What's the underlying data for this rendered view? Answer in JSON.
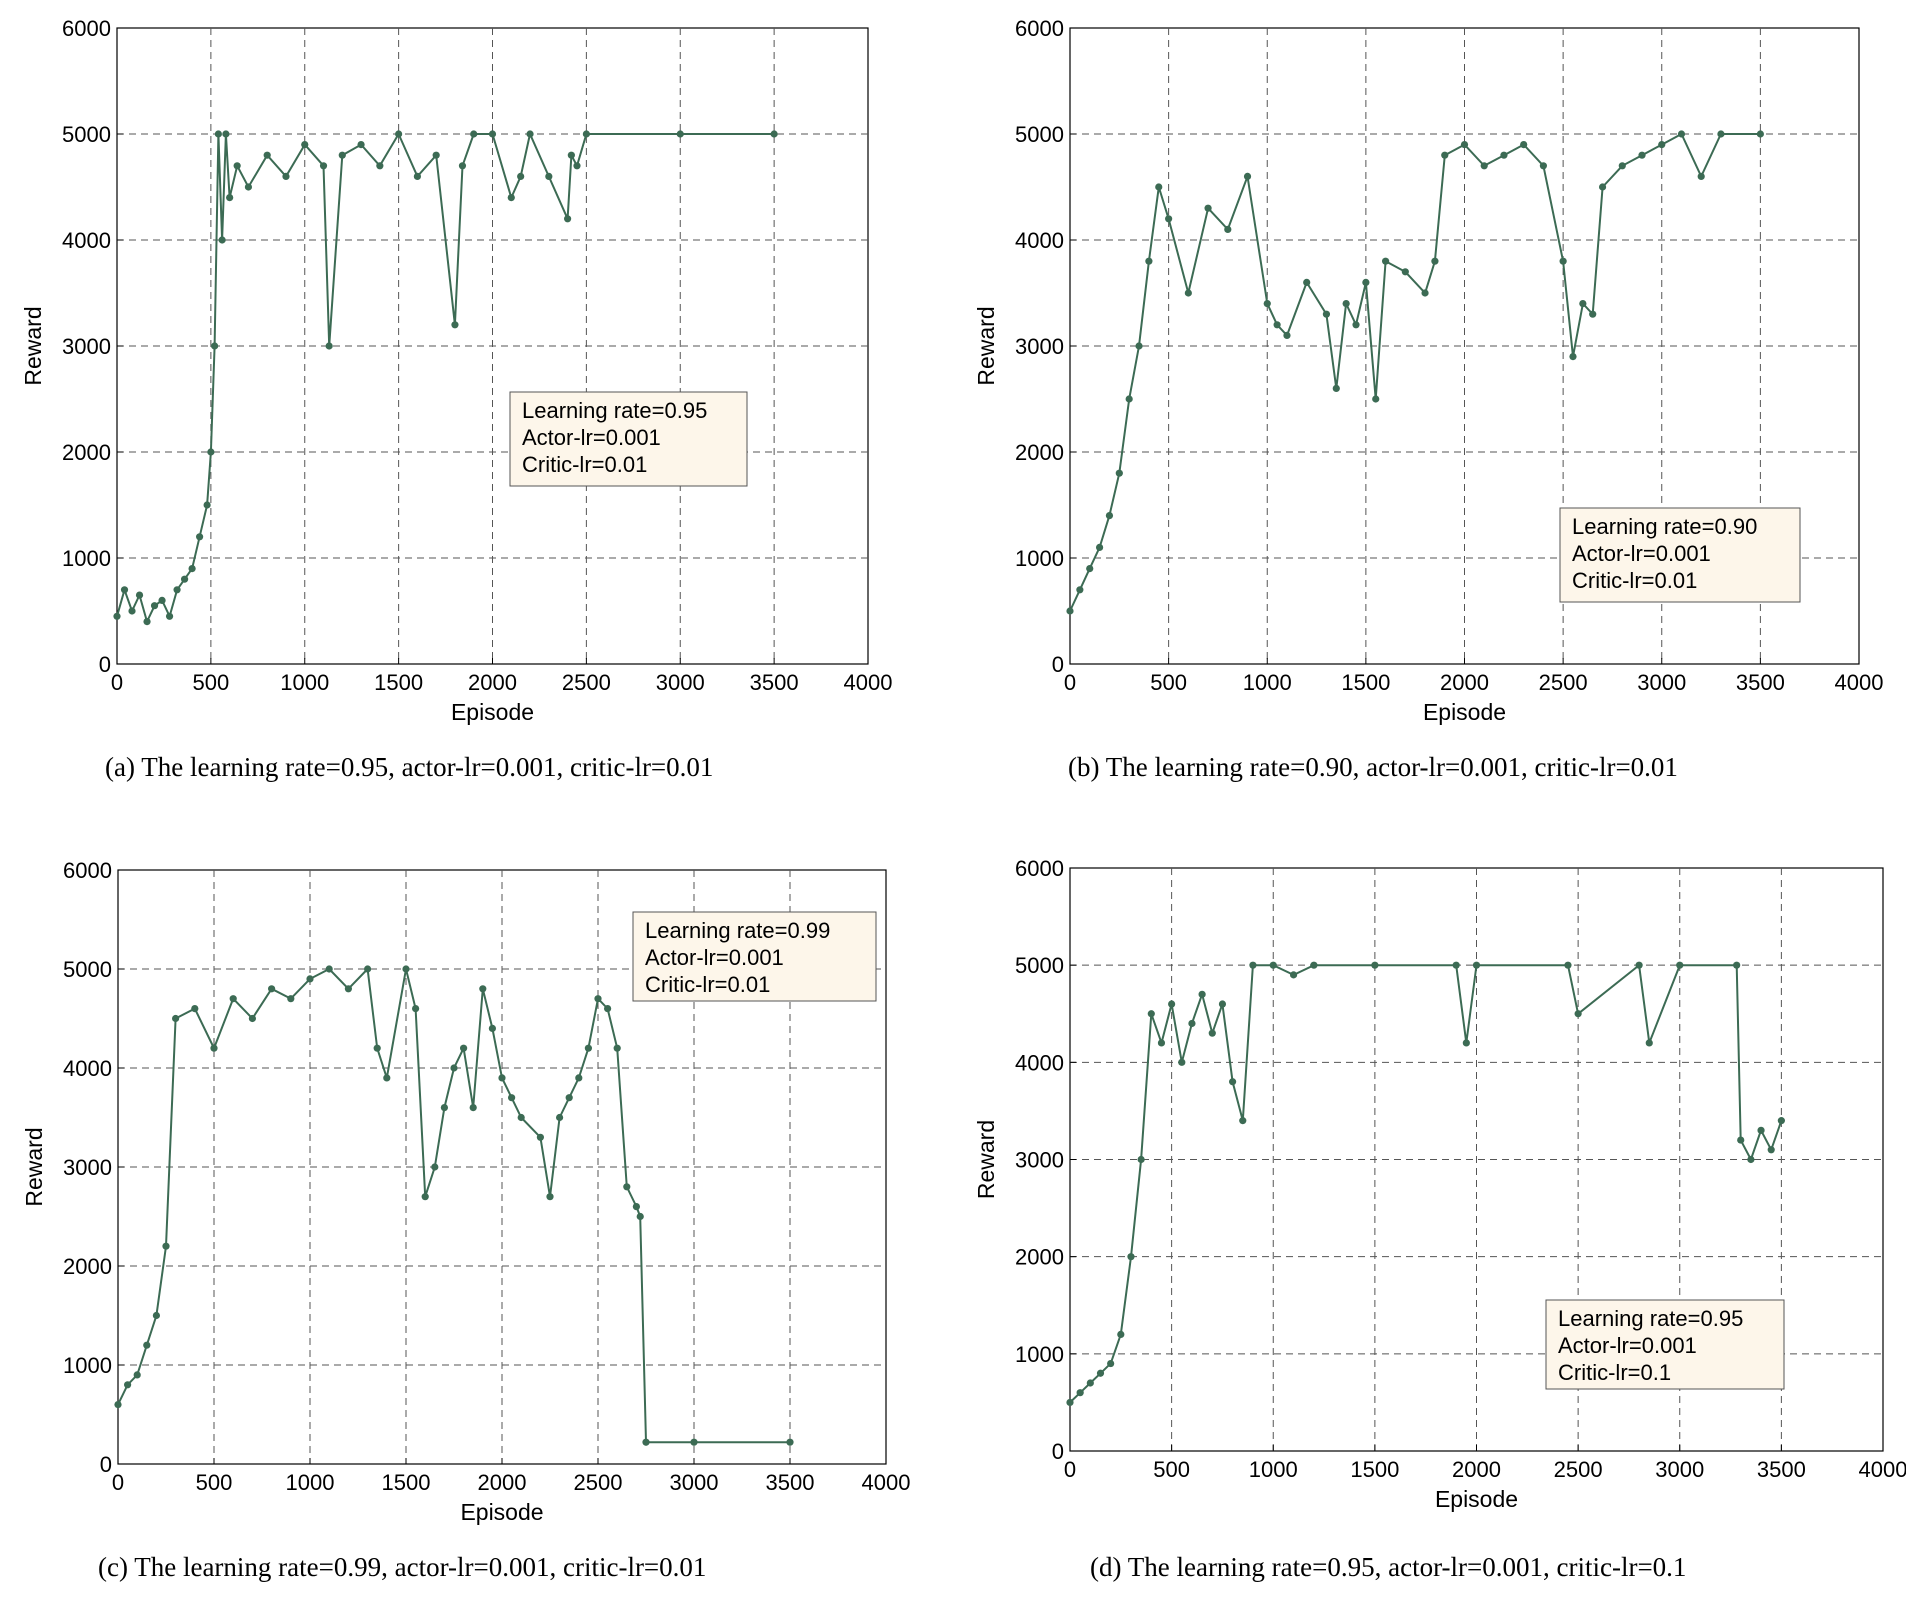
{
  "chart_data": [
    {
      "type": "line",
      "panel_id": "a",
      "caption": "(a) The learning rate=0.95, actor-lr=0.001, critic-lr=0.01",
      "xlabel": "Episode",
      "ylabel": "Reward",
      "xlim": [
        0,
        4000
      ],
      "ylim": [
        0,
        6000
      ],
      "xticks": [
        0,
        500,
        1000,
        1500,
        2000,
        2500,
        3000,
        3500,
        4000
      ],
      "yticks": [
        0,
        1000,
        2000,
        3000,
        4000,
        5000,
        6000
      ],
      "grid": true,
      "legend": {
        "position": "center-right",
        "lines": [
          "Learning rate=0.95",
          "Actor-lr=0.001",
          "Critic-lr=0.01"
        ]
      },
      "series": [
        {
          "color": "#3c6b54",
          "x": [
            0,
            40,
            80,
            120,
            160,
            200,
            240,
            280,
            320,
            360,
            400,
            440,
            480,
            500,
            520,
            540,
            560,
            580,
            600,
            640,
            700,
            800,
            900,
            1000,
            1100,
            1130,
            1200,
            1300,
            1400,
            1500,
            1600,
            1700,
            1800,
            1840,
            1900,
            2000,
            2100,
            2150,
            2200,
            2300,
            2400,
            2420,
            2450,
            2500,
            3000,
            3500
          ],
          "y": [
            450,
            700,
            500,
            650,
            400,
            550,
            600,
            450,
            700,
            800,
            900,
            1200,
            1500,
            2000,
            3000,
            5000,
            4000,
            5000,
            4400,
            4700,
            4500,
            4800,
            4600,
            4900,
            4700,
            3000,
            4800,
            4900,
            4700,
            5000,
            4600,
            4800,
            3200,
            4700,
            5000,
            5000,
            4400,
            4600,
            5000,
            4600,
            4200,
            4800,
            4700,
            5000,
            5000,
            5000
          ]
        }
      ]
    },
    {
      "type": "line",
      "panel_id": "b",
      "caption": "(b) The learning rate=0.90, actor-lr=0.001, critic-lr=0.01",
      "xlabel": "Episode",
      "ylabel": "Reward",
      "xlim": [
        0,
        4000
      ],
      "ylim": [
        0,
        6000
      ],
      "xticks": [
        0,
        500,
        1000,
        1500,
        2000,
        2500,
        3000,
        3500,
        4000
      ],
      "yticks": [
        0,
        1000,
        2000,
        3000,
        4000,
        5000,
        6000
      ],
      "grid": true,
      "legend": {
        "position": "lower-right",
        "lines": [
          "Learning rate=0.90",
          "Actor-lr=0.001",
          "Critic-lr=0.01"
        ]
      },
      "series": [
        {
          "color": "#3c6b54",
          "x": [
            0,
            50,
            100,
            150,
            200,
            250,
            300,
            350,
            400,
            450,
            500,
            600,
            700,
            800,
            900,
            1000,
            1050,
            1100,
            1200,
            1300,
            1350,
            1400,
            1450,
            1500,
            1550,
            1600,
            1700,
            1800,
            1850,
            1900,
            2000,
            2100,
            2200,
            2300,
            2400,
            2500,
            2550,
            2600,
            2650,
            2700,
            2800,
            2900,
            3000,
            3100,
            3200,
            3300,
            3500
          ],
          "y": [
            500,
            700,
            900,
            1100,
            1400,
            1800,
            2500,
            3000,
            3800,
            4500,
            4200,
            3500,
            4300,
            4100,
            4600,
            3400,
            3200,
            3100,
            3600,
            3300,
            2600,
            3400,
            3200,
            3600,
            2500,
            3800,
            3700,
            3500,
            3800,
            4800,
            4900,
            4700,
            4800,
            4900,
            4700,
            3800,
            2900,
            3400,
            3300,
            4500,
            4700,
            4800,
            4900,
            5000,
            4600,
            5000,
            5000
          ]
        }
      ]
    },
    {
      "type": "line",
      "panel_id": "c",
      "caption": "(c) The learning rate=0.99, actor-lr=0.001, critic-lr=0.01",
      "xlabel": "Episode",
      "ylabel": "Reward",
      "xlim": [
        0,
        4000
      ],
      "ylim": [
        0,
        6000
      ],
      "xticks": [
        0,
        500,
        1000,
        1500,
        2000,
        2500,
        3000,
        3500,
        4000
      ],
      "yticks": [
        0,
        1000,
        2000,
        3000,
        4000,
        5000,
        6000
      ],
      "grid": true,
      "legend": {
        "position": "top-right",
        "lines": [
          "Learning rate=0.99",
          "Actor-lr=0.001",
          "Critic-lr=0.01"
        ]
      },
      "series": [
        {
          "color": "#3c6b54",
          "x": [
            0,
            50,
            100,
            150,
            200,
            250,
            300,
            400,
            500,
            600,
            700,
            800,
            900,
            1000,
            1100,
            1200,
            1300,
            1350,
            1400,
            1500,
            1550,
            1600,
            1650,
            1700,
            1750,
            1800,
            1850,
            1900,
            1950,
            2000,
            2050,
            2100,
            2200,
            2250,
            2300,
            2350,
            2400,
            2450,
            2500,
            2550,
            2600,
            2650,
            2700,
            2720,
            2750,
            3000,
            3500
          ],
          "y": [
            600,
            800,
            900,
            1200,
            1500,
            2200,
            4500,
            4600,
            4200,
            4700,
            4500,
            4800,
            4700,
            4900,
            5000,
            4800,
            5000,
            4200,
            3900,
            5000,
            4600,
            2700,
            3000,
            3600,
            4000,
            4200,
            3600,
            4800,
            4400,
            3900,
            3700,
            3500,
            3300,
            2700,
            3500,
            3700,
            3900,
            4200,
            4700,
            4600,
            4200,
            2800,
            2600,
            2500,
            220,
            220,
            220
          ]
        }
      ]
    },
    {
      "type": "line",
      "panel_id": "d",
      "caption": "(d) The learning rate=0.95, actor-lr=0.001, critic-lr=0.1",
      "xlabel": "Episode",
      "ylabel": "Reward",
      "xlim": [
        0,
        4000
      ],
      "ylim": [
        0,
        6000
      ],
      "xticks": [
        0,
        500,
        1000,
        1500,
        2000,
        2500,
        3000,
        3500,
        4000
      ],
      "yticks": [
        0,
        1000,
        2000,
        3000,
        4000,
        5000,
        6000
      ],
      "grid": true,
      "legend": {
        "position": "lower-right",
        "lines": [
          "Learning rate=0.95",
          "Actor-lr=0.001",
          "Critic-lr=0.1"
        ]
      },
      "series": [
        {
          "color": "#3c6b54",
          "x": [
            0,
            50,
            100,
            150,
            200,
            250,
            300,
            350,
            400,
            450,
            500,
            550,
            600,
            650,
            700,
            750,
            800,
            850,
            900,
            1000,
            1100,
            1200,
            1500,
            1900,
            1950,
            2000,
            2450,
            2500,
            2800,
            2850,
            3000,
            3280,
            3300,
            3350,
            3400,
            3450,
            3500
          ],
          "y": [
            500,
            600,
            700,
            800,
            900,
            1200,
            2000,
            3000,
            4500,
            4200,
            4600,
            4000,
            4400,
            4700,
            4300,
            4600,
            3800,
            3400,
            5000,
            5000,
            4900,
            5000,
            5000,
            5000,
            4200,
            5000,
            5000,
            4500,
            5000,
            4200,
            5000,
            5000,
            3200,
            3000,
            3300,
            3100,
            3400
          ]
        }
      ]
    }
  ]
}
